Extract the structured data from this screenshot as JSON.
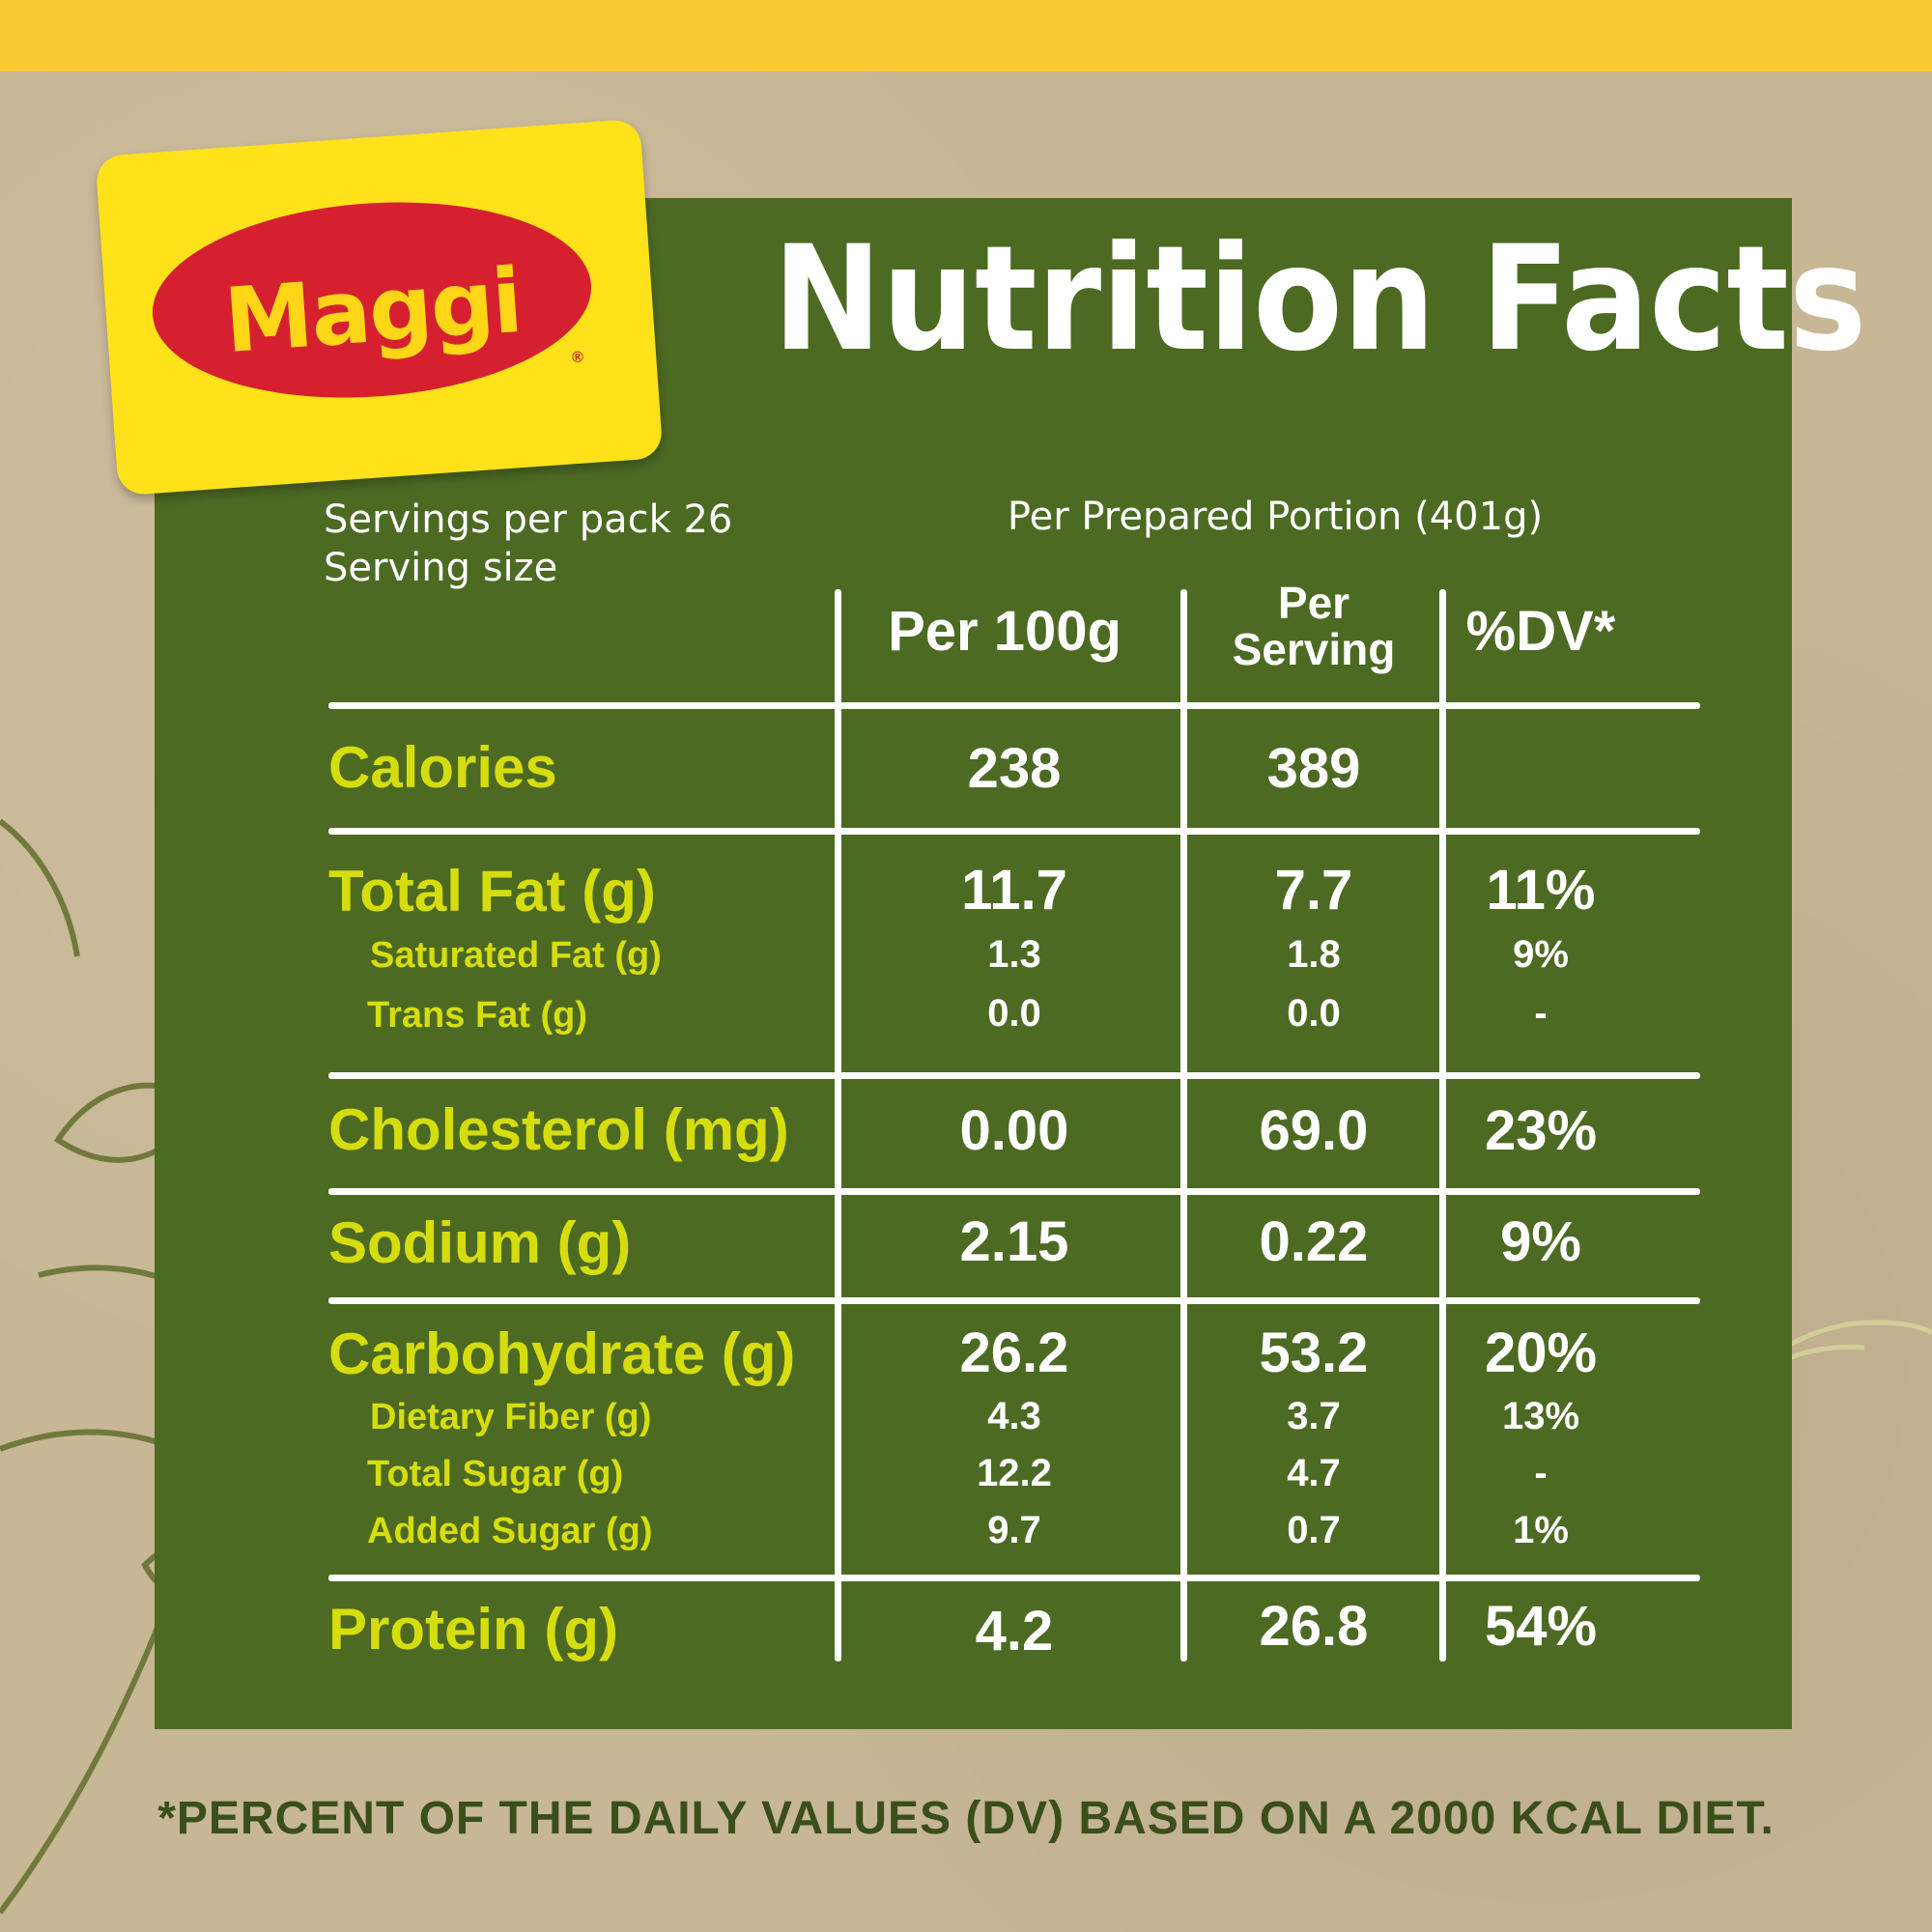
{
  "brand": {
    "logo_text": "Maggi",
    "registered_mark": "®"
  },
  "title": "Nutrition Facts",
  "servings": {
    "per_pack": "Servings per pack 26",
    "serving_size": "Serving size"
  },
  "portion_header": "Per Prepared Portion (401g)",
  "columns": {
    "per100": "Per 100g",
    "per_serving_line1": "Per",
    "per_serving_line2": "Serving",
    "dv": "%DV*"
  },
  "rows": {
    "calories": {
      "label": "Calories",
      "per100": "238",
      "serving": "389",
      "dv": ""
    },
    "total_fat": {
      "label": "Total Fat (g)",
      "per100": "11.7",
      "serving": "7.7",
      "dv": "11%"
    },
    "saturated_fat": {
      "label": "Saturated Fat (g)",
      "per100": "1.3",
      "serving": "1.8",
      "dv": "9%"
    },
    "trans_fat": {
      "label": "Trans Fat (g)",
      "per100": "0.0",
      "serving": "0.0",
      "dv": "-"
    },
    "cholesterol": {
      "label": "Cholesterol (mg)",
      "per100": "0.00",
      "serving": "69.0",
      "dv": "23%"
    },
    "sodium": {
      "label": "Sodium (g)",
      "per100": "2.15",
      "serving": "0.22",
      "dv": "9%"
    },
    "carbohydrate": {
      "label": "Carbohydrate (g)",
      "per100": "26.2",
      "serving": "53.2",
      "dv": "20%"
    },
    "dietary_fiber": {
      "label": "Dietary Fiber (g)",
      "per100": "4.3",
      "serving": "3.7",
      "dv": "13%"
    },
    "total_sugar": {
      "label": "Total Sugar (g)",
      "per100": "12.2",
      "serving": "4.7",
      "dv": "-"
    },
    "added_sugar": {
      "label": "Added Sugar (g)",
      "per100": "9.7",
      "serving": "0.7",
      "dv": "1%"
    },
    "protein": {
      "label": "Protein (g)",
      "per100": "4.2",
      "serving": "26.8",
      "dv": "54%"
    }
  },
  "footnote": "*PERCENT OF THE DAILY VALUES (DV) BASED ON A 2000 KCAL DIET.",
  "colors": {
    "panel_green": "#4d6a23",
    "label_yellow": "#d6dd0f",
    "band_yellow": "#fcc934",
    "kraft": "#c8b795",
    "logo_red": "#d6202f",
    "logo_yellow": "#ffe21a"
  }
}
